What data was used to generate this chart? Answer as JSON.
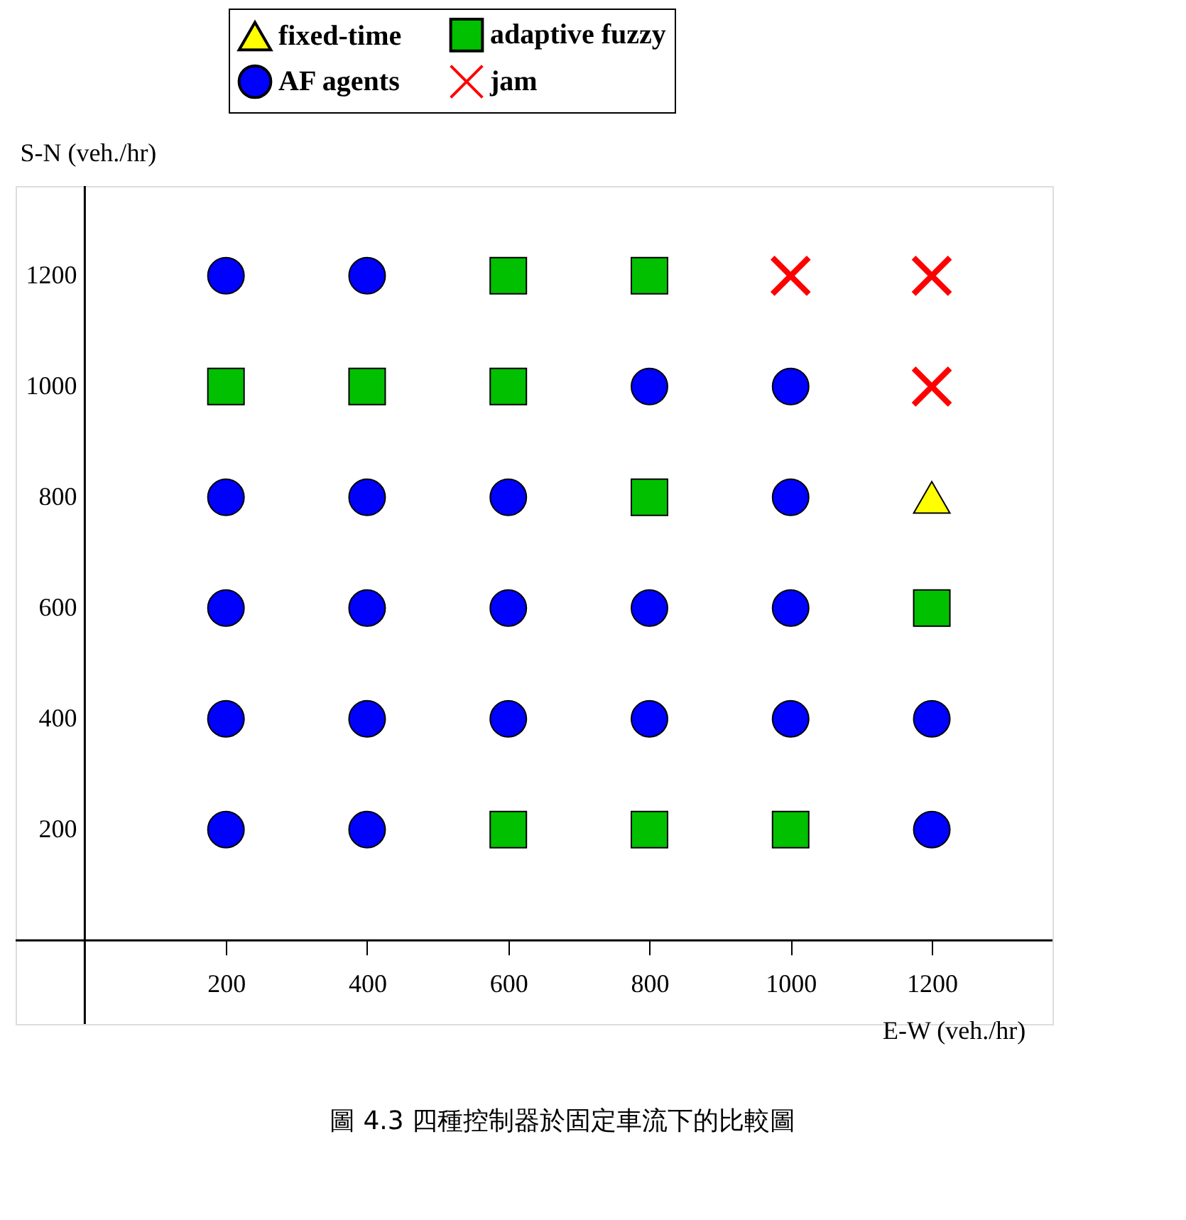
{
  "chart_data": {
    "type": "scatter",
    "xlabel": "E-W (veh./hr)",
    "ylabel": "S-N (veh./hr)",
    "xlim": [
      -98,
      1371
    ],
    "ylim": [
      -151,
      1362
    ],
    "xticks": [
      200,
      400,
      600,
      800,
      1000,
      1200
    ],
    "yticks": [
      200,
      400,
      600,
      800,
      1000,
      1200
    ],
    "grid": false,
    "legend": "top",
    "annotations": [
      "圖 4.3 四種控制器於固定車流下的比較圖"
    ],
    "series": [
      {
        "name": "fixed-time",
        "color": "#ffff00",
        "marker": "triangle",
        "x": [
          1200
        ],
        "values": [
          800
        ]
      },
      {
        "name": "adaptive fuzzy",
        "color": "#00c000",
        "marker": "square",
        "x": [
          600,
          800,
          200,
          400,
          600,
          800,
          1200,
          600,
          800,
          1000
        ],
        "values": [
          1200,
          1200,
          1000,
          1000,
          1000,
          800,
          600,
          200,
          200,
          200
        ]
      },
      {
        "name": "AF agents",
        "color": "#0000ff",
        "marker": "circle",
        "x": [
          200,
          400,
          800,
          1000,
          200,
          400,
          600,
          1000,
          200,
          400,
          600,
          800,
          1000,
          200,
          400,
          600,
          800,
          1000,
          1200,
          200,
          400,
          1200
        ],
        "values": [
          1200,
          1200,
          1000,
          1000,
          800,
          800,
          800,
          800,
          600,
          600,
          600,
          600,
          600,
          400,
          400,
          400,
          400,
          400,
          400,
          200,
          200,
          200
        ]
      },
      {
        "name": "jam",
        "color": "#ff0000",
        "marker": "cross",
        "x": [
          1000,
          1200,
          1200
        ],
        "values": [
          1200,
          1200,
          1000
        ]
      }
    ]
  }
}
